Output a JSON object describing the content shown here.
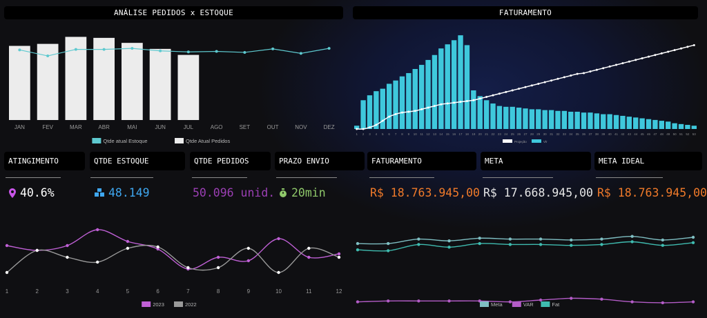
{
  "headers": {
    "analise": "ANÁLISE PEDIDOS x ESTOQUE",
    "faturamento": "FATURAMENTO"
  },
  "kpis": [
    {
      "label": "ATINGIMENTO",
      "value": "40.6%",
      "color": "#ffffff",
      "icon": "map-pin-icon",
      "icon_color": "#c855e8"
    },
    {
      "label": "QTDE ESTOQUE",
      "value": "48.149",
      "color": "#3fa7f0",
      "icon": "boxes-icon",
      "icon_color": "#3fa7f0"
    },
    {
      "label": "QTDE PEDIDOS",
      "value": "50.096 unid.",
      "color": "#9b3fb4",
      "icon": "",
      "icon_color": ""
    },
    {
      "label": "PRAZO ENVIO",
      "value": "20min",
      "color": "#8fc86a",
      "icon": "stopwatch-icon",
      "icon_color": "#8fc86a"
    },
    {
      "label": "FATURAMENTO",
      "value": "R$ 18.763.945,00",
      "color": "#f07a2a",
      "icon": "",
      "icon_color": ""
    },
    {
      "label": "META",
      "value": "R$ 17.668.945,00",
      "color": "#e6e6e6",
      "icon": "",
      "icon_color": ""
    },
    {
      "label": "META IDEAL",
      "value": "R$ 18.763.945,00",
      "color": "#f07a2a",
      "icon": "",
      "icon_color": ""
    }
  ],
  "chart_data": [
    {
      "type": "bar",
      "id": "pedidos-estoque",
      "categories": [
        "JAN",
        "FEV",
        "MAR",
        "ABR",
        "MAI",
        "JUN",
        "JUL",
        "AGO",
        "SET",
        "OUT",
        "NOV",
        "DEZ"
      ],
      "series": [
        {
          "name": "Qtde Atual Pedidos",
          "kind": "bar",
          "color": "#ececec",
          "values": [
            7400,
            7600,
            8300,
            8200,
            7700,
            7100,
            6500,
            null,
            null,
            null,
            null,
            null
          ]
        },
        {
          "name": "Qtde atual Estoque",
          "kind": "line",
          "color": "#5ec9cf",
          "values": [
            7000,
            6400,
            7050,
            7050,
            7150,
            6900,
            6800,
            6850,
            6750,
            7100,
            6650,
            7150
          ]
        }
      ],
      "ylim": [
        0,
        9500
      ],
      "legend": "bottom"
    },
    {
      "type": "bar",
      "id": "faturamento",
      "categories": [
        "1",
        "2",
        "3",
        "4",
        "5",
        "6",
        "7",
        "8",
        "9",
        "10",
        "11",
        "12",
        "13",
        "14",
        "15",
        "16",
        "17",
        "18",
        "19",
        "20",
        "21",
        "22",
        "23",
        "24",
        "25",
        "26",
        "27",
        "28",
        "29",
        "30",
        "31",
        "32",
        "33",
        "34",
        "35",
        "36",
        "37",
        "38",
        "39",
        "40",
        "41",
        "42",
        "43",
        "44",
        "45",
        "46",
        "47",
        "48",
        "49",
        "50",
        "51",
        "52",
        "53"
      ],
      "series": [
        {
          "name": "Vlr",
          "kind": "bar",
          "color": "#3fc8dc",
          "values": [
            4,
            35,
            41,
            46,
            49,
            55,
            59,
            64,
            68,
            73,
            78,
            84,
            90,
            98,
            103,
            108,
            114,
            102,
            47,
            40,
            35,
            31,
            28,
            27,
            27,
            26,
            25,
            24,
            24,
            23,
            23,
            22,
            22,
            21,
            21,
            20,
            20,
            19,
            18,
            18,
            17,
            16,
            15,
            14,
            13,
            12,
            11,
            10,
            9,
            7,
            6,
            5,
            4
          ]
        },
        {
          "name": "Projeção",
          "kind": "line",
          "color": "#ffffff",
          "values": [
            0,
            0,
            2,
            5,
            10,
            15,
            18,
            20,
            21,
            22,
            24,
            26,
            28,
            30,
            31,
            32,
            33,
            34,
            35,
            37,
            39,
            41,
            43,
            45,
            47,
            49,
            51,
            53,
            55,
            57,
            59,
            61,
            63,
            65,
            67,
            68,
            70,
            72,
            74,
            76,
            78,
            80,
            82,
            84,
            86,
            88,
            90,
            92,
            94,
            96,
            98,
            100,
            102
          ]
        }
      ],
      "ylim": [
        0,
        120
      ],
      "legend": "bottom"
    },
    {
      "type": "line",
      "id": "comparativo-anual",
      "x": [
        1,
        2,
        3,
        4,
        5,
        6,
        7,
        8,
        9,
        10,
        11,
        12
      ],
      "series": [
        {
          "name": "2023",
          "color": "#c060d6",
          "values": [
            62,
            55,
            62,
            85,
            68,
            57,
            28,
            45,
            40,
            72,
            45,
            50
          ]
        },
        {
          "name": "2022",
          "color": "#9a9a9a",
          "values": [
            23,
            55,
            45,
            38,
            58,
            60,
            30,
            30,
            58,
            23,
            58,
            45
          ]
        }
      ],
      "ylim": [
        0,
        100
      ],
      "legend": "bottom"
    },
    {
      "type": "line",
      "id": "meta-var-fat",
      "x": [
        1,
        2,
        3,
        4,
        5,
        6,
        7,
        8,
        9,
        10,
        11,
        12
      ],
      "series": [
        {
          "name": "Meta",
          "color": "#7fbfc3",
          "values": [
            73,
            73,
            78,
            76,
            79,
            78,
            78,
            77,
            78,
            81,
            77,
            80
          ]
        },
        {
          "name": "VAR",
          "color": "#b45cc8",
          "values": [
            8,
            9,
            9,
            9,
            9,
            8,
            10,
            12,
            11,
            8,
            7,
            8
          ]
        },
        {
          "name": "Fat",
          "color": "#3fbcb0",
          "values": [
            66,
            65,
            72,
            69,
            73,
            72,
            72,
            71,
            72,
            75,
            71,
            74
          ]
        }
      ],
      "ylim": [
        0,
        100
      ],
      "legend": "bottom"
    }
  ]
}
